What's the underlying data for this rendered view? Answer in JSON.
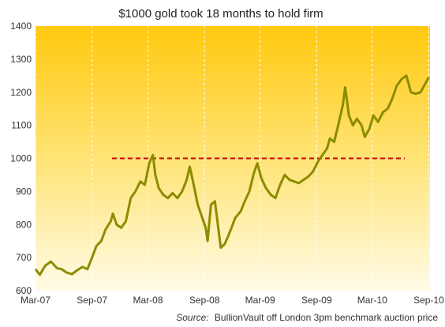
{
  "chart_data": {
    "type": "line",
    "title": "$1000 gold took 18 months to hold firm",
    "source_label": "Source:",
    "source_text": "BullionVault off London 3pm benchmark auction price",
    "x_tick_labels": [
      "Mar-07",
      "Sep-07",
      "Mar-08",
      "Sep-08",
      "Mar-09",
      "Sep-09",
      "Mar-10",
      "Sep-10"
    ],
    "x_tick_dates": [
      "2007-03-01",
      "2007-09-01",
      "2008-03-01",
      "2008-09-01",
      "2009-03-01",
      "2009-09-01",
      "2010-03-01",
      "2010-09-01"
    ],
    "xlim": [
      "2007-03-01",
      "2010-09-05"
    ],
    "ylim": [
      600,
      1400
    ],
    "y_ticks": [
      600,
      700,
      800,
      900,
      1000,
      1100,
      1200,
      1300,
      1400
    ],
    "grid": false,
    "colors": {
      "line": "#8c8c00",
      "reference": "#cc0000",
      "background_top": "#ffc90e",
      "background_bottom": "#fffbe6"
    },
    "reference_line": {
      "y": 1000,
      "x_start": "2007-11-05",
      "x_end": "2010-06-15",
      "style": "dashed"
    },
    "series": [
      {
        "x": [
          "2007-03-01",
          "2007-03-15",
          "2007-04-01",
          "2007-04-20",
          "2007-05-10",
          "2007-05-25",
          "2007-06-10",
          "2007-06-28",
          "2007-07-15",
          "2007-08-01",
          "2007-08-17",
          "2007-09-01",
          "2007-09-15",
          "2007-10-01",
          "2007-10-15",
          "2007-11-01",
          "2007-11-08",
          "2007-11-20",
          "2007-12-05",
          "2007-12-20",
          "2008-01-05",
          "2008-01-20",
          "2008-02-05",
          "2008-02-20",
          "2008-03-05",
          "2008-03-17",
          "2008-03-25",
          "2008-04-05",
          "2008-04-20",
          "2008-05-05",
          "2008-05-20",
          "2008-06-05",
          "2008-06-20",
          "2008-07-05",
          "2008-07-15",
          "2008-07-28",
          "2008-08-10",
          "2008-08-25",
          "2008-09-05",
          "2008-09-11",
          "2008-09-22",
          "2008-10-05",
          "2008-10-24",
          "2008-11-05",
          "2008-11-15",
          "2008-11-28",
          "2008-12-10",
          "2008-12-28",
          "2009-01-10",
          "2009-01-25",
          "2009-02-10",
          "2009-02-20",
          "2009-03-05",
          "2009-03-20",
          "2009-04-05",
          "2009-04-20",
          "2009-05-05",
          "2009-05-20",
          "2009-06-05",
          "2009-06-20",
          "2009-07-05",
          "2009-07-20",
          "2009-08-05",
          "2009-08-20",
          "2009-09-05",
          "2009-09-20",
          "2009-10-05",
          "2009-10-14",
          "2009-10-28",
          "2009-11-10",
          "2009-11-25",
          "2009-12-03",
          "2009-12-15",
          "2009-12-28",
          "2010-01-10",
          "2010-01-25",
          "2010-02-05",
          "2010-02-20",
          "2010-03-05",
          "2010-03-20",
          "2010-04-05",
          "2010-04-20",
          "2010-05-05",
          "2010-05-20",
          "2010-06-05",
          "2010-06-20",
          "2010-07-05",
          "2010-07-20",
          "2010-08-05",
          "2010-08-20",
          "2010-09-01"
        ],
        "y": [
          665,
          648,
          675,
          688,
          668,
          665,
          655,
          650,
          662,
          672,
          665,
          700,
          735,
          750,
          785,
          810,
          833,
          800,
          790,
          810,
          880,
          900,
          930,
          920,
          985,
          1010,
          950,
          910,
          890,
          880,
          895,
          880,
          900,
          935,
          975,
          920,
          860,
          820,
          790,
          750,
          860,
          870,
          730,
          740,
          760,
          790,
          820,
          840,
          870,
          900,
          960,
          985,
          940,
          910,
          890,
          880,
          920,
          950,
          935,
          930,
          925,
          935,
          945,
          960,
          990,
          1010,
          1030,
          1060,
          1050,
          1100,
          1160,
          1215,
          1130,
          1100,
          1120,
          1100,
          1065,
          1090,
          1130,
          1110,
          1140,
          1150,
          1180,
          1220,
          1240,
          1250,
          1200,
          1195,
          1200,
          1225,
          1245
        ]
      }
    ]
  }
}
